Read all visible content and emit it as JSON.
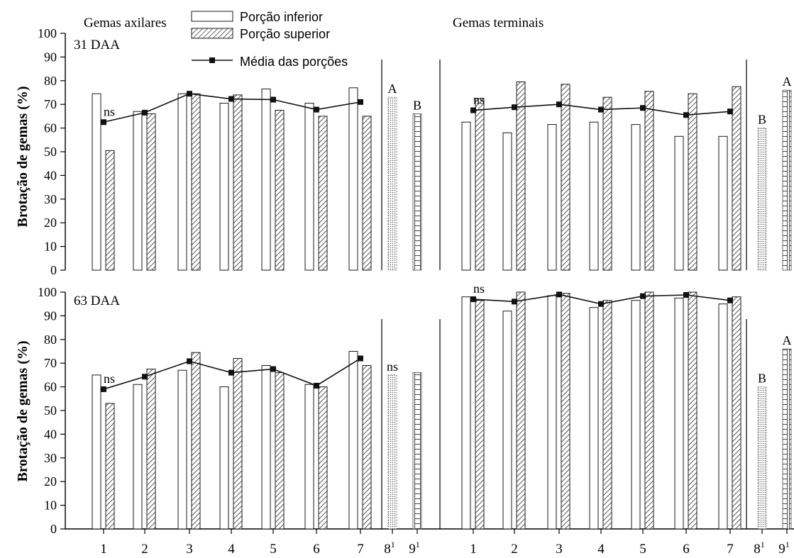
{
  "colors": {
    "axis": "#000000",
    "bar_stroke": "#1a1a1a",
    "lower_fill": "#ffffff",
    "upper_hatch": "#2a2a2a",
    "mean_line": "#111111",
    "dotted_fill": "#555555"
  },
  "legend": {
    "lower": "Porção inferior",
    "upper": "Porção superior",
    "mean": "Média das porções"
  },
  "chart_data": {
    "type": "bar",
    "ylabel": "Brotação de gemas (%)",
    "ylim": [
      0,
      100
    ],
    "yticks": [
      "0",
      "10",
      "20",
      "30",
      "40",
      "50",
      "60",
      "70",
      "80",
      "90",
      "100"
    ],
    "categories": [
      "1",
      "2",
      "3",
      "4",
      "5",
      "6",
      "7"
    ],
    "extra_categories": [
      {
        "label": "8",
        "sup": "1"
      },
      {
        "label": "9",
        "sup": "1"
      }
    ],
    "panels": [
      {
        "group": "Gemas axilares",
        "date": "31 DAA",
        "series": [
          {
            "name": "Porção inferior",
            "values": [
              74.5,
              67,
              74.5,
              70.5,
              76.5,
              70.5,
              77
            ]
          },
          {
            "name": "Porção superior",
            "values": [
              50.5,
              66,
              74.5,
              74,
              67.5,
              65,
              65
            ]
          },
          {
            "name": "Média das porções",
            "values": [
              62.5,
              66.5,
              74.5,
              72.3,
              72,
              67.8,
              71
            ]
          }
        ],
        "extra_values": [
          73,
          66
        ],
        "mean_label": "ns",
        "extra_labels": [
          "A",
          "B"
        ]
      },
      {
        "group": "Gemas terminais",
        "date": "",
        "series": [
          {
            "name": "Porção inferior",
            "values": [
              62.5,
              58,
              61.5,
              62.5,
              61.5,
              56.5,
              56.5
            ]
          },
          {
            "name": "Porção superior",
            "values": [
              72.5,
              79.5,
              78.5,
              73,
              75.5,
              74.5,
              77.5
            ]
          },
          {
            "name": "Média das porções",
            "values": [
              67.5,
              68.8,
              70,
              67.8,
              68.5,
              65.5,
              67
            ]
          }
        ],
        "extra_values": [
          60,
          76
        ],
        "mean_label": "ns",
        "extra_labels": [
          "B",
          "A"
        ]
      },
      {
        "group": "Gemas axilares",
        "date": "63 DAA",
        "series": [
          {
            "name": "Porção inferior",
            "values": [
              65,
              61,
              67,
              60,
              69,
              61,
              75
            ]
          },
          {
            "name": "Porção superior",
            "values": [
              53,
              67.5,
              74.5,
              72,
              66,
              60,
              69
            ]
          },
          {
            "name": "Média das porções",
            "values": [
              59,
              64.3,
              70.8,
              66,
              67.5,
              60.5,
              72
            ]
          }
        ],
        "extra_values": [
          65,
          66
        ],
        "mean_label": "ns",
        "extra_labels": [
          "ns",
          ""
        ]
      },
      {
        "group": "Gemas terminais",
        "date": "",
        "series": [
          {
            "name": "Porção inferior",
            "values": [
              98,
              92,
              98.5,
              93.5,
              96.5,
              97.5,
              95
            ]
          },
          {
            "name": "Porção superior",
            "values": [
              96.5,
              100,
              99.5,
              96.5,
              100,
              100,
              98
            ]
          },
          {
            "name": "Média das porções",
            "values": [
              97,
              96,
              99,
              95,
              98.3,
              98.8,
              96.5
            ]
          }
        ],
        "extra_values": [
          60,
          76
        ],
        "mean_label": "ns",
        "extra_labels": [
          "B",
          "A"
        ]
      }
    ],
    "grid": false,
    "legend_position": "top-left"
  }
}
